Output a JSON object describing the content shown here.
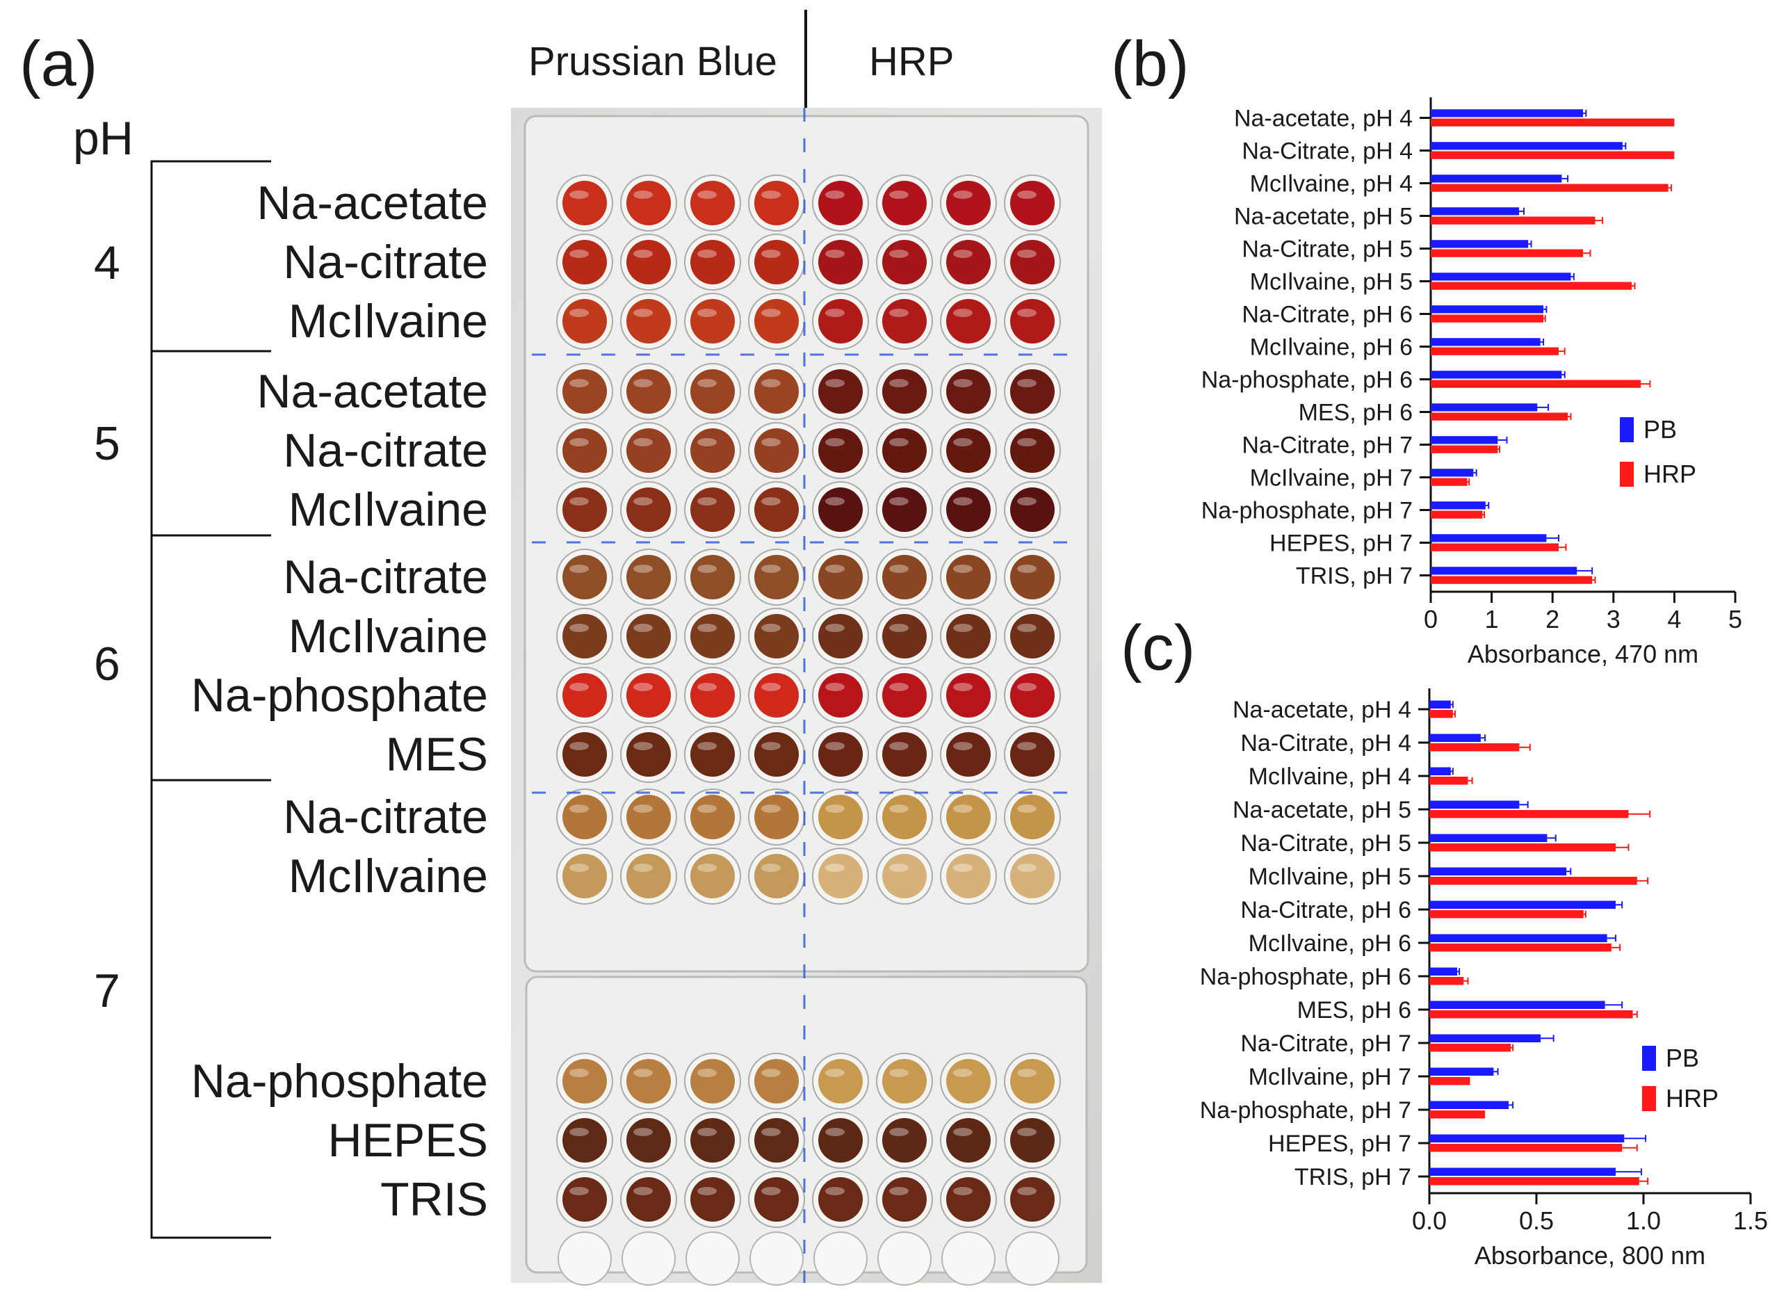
{
  "panel_a": {
    "letter": "(a)",
    "ph_header": "pH",
    "column_headers": {
      "left": "Prussian Blue",
      "right": "HRP"
    },
    "groups": [
      {
        "ph": "4",
        "buffers": [
          "Na-acetate",
          "Na-citrate",
          "McIlvaine"
        ]
      },
      {
        "ph": "5",
        "buffers": [
          "Na-acetate",
          "Na-citrate",
          "McIlvaine"
        ]
      },
      {
        "ph": "6",
        "buffers": [
          "Na-citrate",
          "McIlvaine",
          "Na-phosphate",
          "MES"
        ]
      },
      {
        "ph": "7",
        "buffers": [
          "Na-citrate",
          "McIlvaine",
          "Na-phosphate",
          "HEPES",
          "TRIS"
        ]
      }
    ],
    "plate_rows": [
      {
        "buffer": "Na-acetate pH 4",
        "pb": "#c8301c",
        "hrp": "#b0141a"
      },
      {
        "buffer": "Na-citrate pH 4",
        "pb": "#b82a18",
        "hrp": "#a51618"
      },
      {
        "buffer": "McIlvaine pH 4",
        "pb": "#c03a1c",
        "hrp": "#b01a18"
      },
      {
        "buffer": "Na-acetate pH 5",
        "pb": "#9a4422",
        "hrp": "#6a1a12"
      },
      {
        "buffer": "Na-citrate pH 5",
        "pb": "#954020",
        "hrp": "#641810"
      },
      {
        "buffer": "McIlvaine pH 5",
        "pb": "#8a3018",
        "hrp": "#5a1210"
      },
      {
        "buffer": "Na-citrate pH 6",
        "pb": "#8e4e26",
        "hrp": "#8a4522"
      },
      {
        "buffer": "McIlvaine pH 6",
        "pb": "#7a3c1c",
        "hrp": "#6e3018"
      },
      {
        "buffer": "Na-phosphate pH 6",
        "pb": "#d0281a",
        "hrp": "#b8141c"
      },
      {
        "buffer": "MES pH 6",
        "pb": "#6a2a14",
        "hrp": "#6a2614"
      },
      {
        "buffer": "Na-citrate pH 7",
        "pb": "#b27638",
        "hrp": "#c49448"
      },
      {
        "buffer": "McIlvaine pH 7",
        "pb": "#c49a5a",
        "hrp": "#d6b27a"
      },
      {
        "buffer": "Na-phosphate pH 7",
        "pb": "#b88040",
        "hrp": "#c89a50"
      },
      {
        "buffer": "HEPES pH 7",
        "pb": "#5e2a16",
        "hrp": "#5e2816"
      },
      {
        "buffer": "TRIS pH 7",
        "pb": "#6a2a16",
        "hrp": "#6a2a16"
      }
    ]
  },
  "chart_data": [
    {
      "panel": "(b)",
      "type": "bar",
      "orientation": "horizontal",
      "xlabel": "Absorbance, 470 nm",
      "xlim": [
        0,
        5
      ],
      "xticks": [
        "0",
        "1",
        "2",
        "3",
        "4",
        "5"
      ],
      "categories": [
        "Na-acetate, pH 4",
        "Na-Citrate, pH 4",
        "McIlvaine, pH 4",
        "Na-acetate, pH 5",
        "Na-Citrate, pH 5",
        "McIlvaine, pH 5",
        "Na-Citrate, pH 6",
        "McIlvaine, pH 6",
        "Na-phosphate, pH 6",
        "MES, pH 6",
        "Na-Citrate, pH 7",
        "McIlvaine, pH 7",
        "Na-phosphate, pH 7",
        "HEPES, pH 7",
        "TRIS, pH 7"
      ],
      "series": [
        {
          "name": "PB",
          "color": "#1a1aff",
          "values": [
            2.5,
            3.15,
            2.15,
            1.45,
            1.6,
            2.3,
            1.85,
            1.8,
            2.15,
            1.75,
            1.1,
            0.7,
            0.9,
            1.9,
            2.4
          ],
          "errors": [
            0.05,
            0.05,
            0.1,
            0.08,
            0.05,
            0.05,
            0.05,
            0.05,
            0.05,
            0.18,
            0.15,
            0.05,
            0.05,
            0.2,
            0.25
          ]
        },
        {
          "name": "HRP",
          "color": "#ff1a1a",
          "values": [
            4.0,
            4.0,
            3.9,
            2.7,
            2.5,
            3.3,
            1.85,
            2.1,
            3.45,
            2.25,
            1.1,
            0.6,
            0.85,
            2.1,
            2.65
          ],
          "errors": [
            0.0,
            0.0,
            0.05,
            0.12,
            0.12,
            0.05,
            0.03,
            0.1,
            0.15,
            0.05,
            0.03,
            0.03,
            0.03,
            0.12,
            0.05
          ]
        }
      ],
      "legend": "right-middle"
    },
    {
      "panel": "(c)",
      "type": "bar",
      "orientation": "horizontal",
      "xlabel": "Absorbance, 800 nm",
      "xlim": [
        0,
        1.5
      ],
      "xticks": [
        "0.0",
        "0.5",
        "1.0",
        "1.5"
      ],
      "categories": [
        "Na-acetate, pH 4",
        "Na-Citrate, pH 4",
        "McIlvaine, pH 4",
        "Na-acetate, pH 5",
        "Na-Citrate, pH 5",
        "McIlvaine, pH 5",
        "Na-Citrate, pH 6",
        "McIlvaine, pH 6",
        "Na-phosphate, pH 6",
        "MES, pH 6",
        "Na-Citrate, pH 7",
        "McIlvaine, pH 7",
        "Na-phosphate, pH 7",
        "HEPES, pH 7",
        "TRIS, pH 7"
      ],
      "series": [
        {
          "name": "PB",
          "color": "#1a1aff",
          "values": [
            0.1,
            0.24,
            0.1,
            0.42,
            0.55,
            0.64,
            0.87,
            0.83,
            0.13,
            0.82,
            0.52,
            0.3,
            0.37,
            0.91,
            0.87
          ],
          "errors": [
            0.01,
            0.02,
            0.01,
            0.04,
            0.04,
            0.02,
            0.03,
            0.04,
            0.01,
            0.08,
            0.06,
            0.02,
            0.02,
            0.1,
            0.12
          ]
        },
        {
          "name": "HRP",
          "color": "#ff1a1a",
          "values": [
            0.11,
            0.42,
            0.18,
            0.93,
            0.87,
            0.97,
            0.72,
            0.85,
            0.16,
            0.95,
            0.38,
            0.19,
            0.26,
            0.9,
            0.98
          ],
          "errors": [
            0.01,
            0.05,
            0.02,
            0.1,
            0.06,
            0.05,
            0.01,
            0.04,
            0.02,
            0.02,
            0.01,
            0.0,
            0.0,
            0.07,
            0.04
          ]
        }
      ],
      "legend": "right-lower"
    }
  ]
}
